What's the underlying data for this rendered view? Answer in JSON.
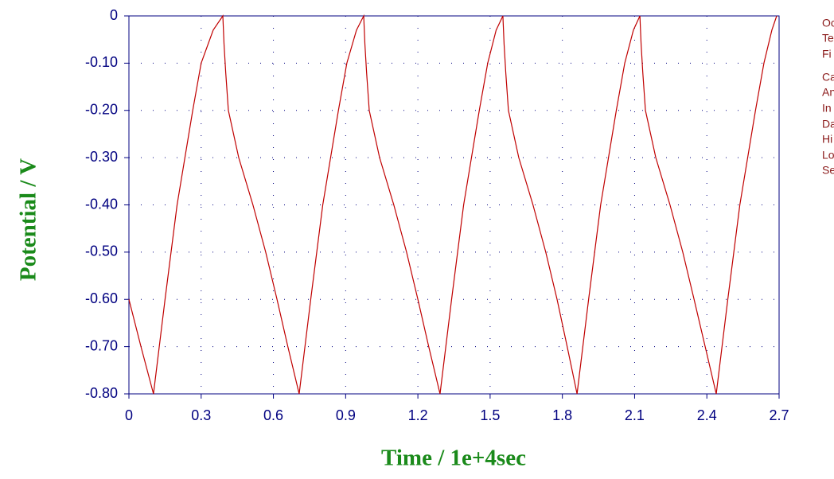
{
  "chart_data": {
    "type": "line",
    "x_label": "Time / 1e+4sec",
    "y_label": "Potential / V",
    "annotations": [
      "Oc",
      "Te",
      "Fi",
      "Ca",
      "An",
      "In",
      "Da",
      "Hi",
      "Lo",
      "Se"
    ],
    "series": [
      {
        "name": null,
        "color": "#c00000",
        "x": [
          0,
          0.05,
          0.102,
          0.15,
          0.2,
          0.265,
          0.3,
          0.35,
          0.39,
          0.395,
          0.402,
          0.413,
          0.456,
          0.515,
          0.568,
          0.615,
          0.66,
          0.707,
          0.755,
          0.805,
          0.87,
          0.905,
          0.945,
          0.975,
          0.98,
          0.987,
          0.998,
          1.041,
          1.1,
          1.153,
          1.2,
          1.245,
          1.292,
          1.34,
          1.39,
          1.455,
          1.49,
          1.525,
          1.553,
          1.558,
          1.565,
          1.576,
          1.619,
          1.678,
          1.731,
          1.778,
          1.82,
          1.861,
          1.909,
          1.959,
          2.024,
          2.059,
          2.095,
          2.122,
          2.127,
          2.134,
          2.145,
          2.188,
          2.247,
          2.3,
          2.347,
          2.393,
          2.439,
          2.487,
          2.537,
          2.602,
          2.637,
          2.67,
          2.69
        ],
        "values": [
          -0.6,
          -0.7,
          -0.8,
          -0.6,
          -0.4,
          -0.2,
          -0.1,
          -0.03,
          0,
          -0.06,
          -0.12,
          -0.2,
          -0.3,
          -0.4,
          -0.5,
          -0.6,
          -0.7,
          -0.8,
          -0.6,
          -0.4,
          -0.2,
          -0.1,
          -0.03,
          0,
          -0.06,
          -0.12,
          -0.2,
          -0.3,
          -0.4,
          -0.5,
          -0.6,
          -0.7,
          -0.8,
          -0.6,
          -0.4,
          -0.2,
          -0.1,
          -0.03,
          0,
          -0.06,
          -0.12,
          -0.2,
          -0.3,
          -0.4,
          -0.5,
          -0.6,
          -0.7,
          -0.8,
          -0.6,
          -0.4,
          -0.2,
          -0.1,
          -0.03,
          0,
          -0.06,
          -0.12,
          -0.2,
          -0.3,
          -0.4,
          -0.5,
          -0.6,
          -0.7,
          -0.8,
          -0.6,
          -0.4,
          -0.2,
          -0.1,
          -0.03,
          0
        ]
      }
    ],
    "xlim": [
      0,
      2.7
    ],
    "xticks": [
      0,
      0.3,
      0.6,
      0.9,
      1.2,
      1.5,
      1.8,
      2.1,
      2.4,
      2.7
    ],
    "ylim": [
      -0.8,
      0
    ],
    "yticks": [
      0,
      {
        "value": -0.1,
        "label": "-0.10"
      },
      {
        "value": -0.2,
        "label": "-0.20"
      },
      {
        "value": -0.3,
        "label": "-0.30"
      },
      {
        "value": -0.4,
        "label": "-0.40"
      },
      {
        "value": -0.5,
        "label": "-0.50"
      },
      {
        "value": -0.6,
        "label": "-0.60"
      },
      {
        "value": -0.7,
        "label": "-0.70"
      },
      {
        "value": -0.8,
        "label": "-0.80"
      }
    ],
    "grid": true
  }
}
